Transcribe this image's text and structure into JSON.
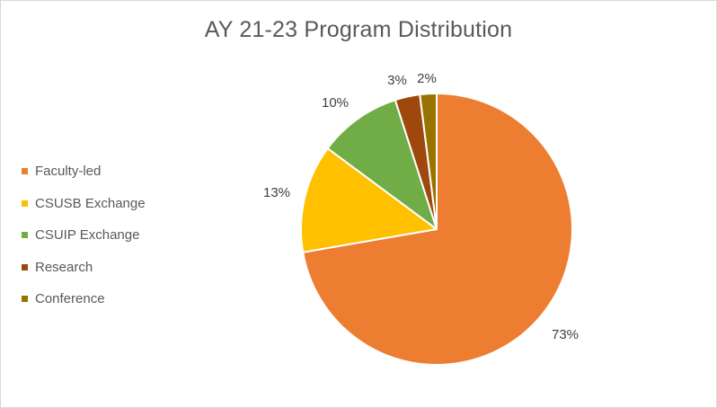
{
  "chart_data": {
    "type": "pie",
    "title": "AY 21-23 Program Distribution",
    "legend_position": "left",
    "slices": [
      {
        "name": "Faculty-led",
        "value": 73,
        "label": "73%",
        "color": "#ED7D31"
      },
      {
        "name": "CSUSB Exchange",
        "value": 13,
        "label": "13%",
        "color": "#FFC000"
      },
      {
        "name": "CSUIP Exchange",
        "value": 10,
        "label": "10%",
        "color": "#70AD47"
      },
      {
        "name": "Research",
        "value": 3,
        "label": "3%",
        "color": "#9E480E"
      },
      {
        "name": "Conference",
        "value": 2,
        "label": "2%",
        "color": "#997300"
      }
    ]
  }
}
